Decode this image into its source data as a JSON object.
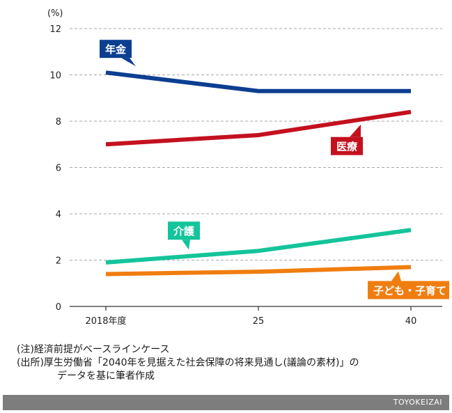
{
  "chart_data": {
    "type": "line",
    "unit_label": "(%)",
    "x": [
      "2018年度",
      "25",
      "40"
    ],
    "y_ticks": [
      0,
      2,
      4,
      6,
      8,
      10,
      12
    ],
    "ylim": [
      0,
      12
    ],
    "grid": true,
    "series": [
      {
        "name": "年金",
        "values": [
          10.1,
          9.3,
          9.3
        ],
        "color": "#0d3f91"
      },
      {
        "name": "医療",
        "values": [
          7.0,
          7.4,
          8.4
        ],
        "color": "#c4111f"
      },
      {
        "name": "介護",
        "values": [
          1.9,
          2.4,
          3.3
        ],
        "color": "#14c49a"
      },
      {
        "name": "子ども・子育て",
        "values": [
          1.4,
          1.5,
          1.7
        ],
        "color": "#f07d10"
      }
    ]
  },
  "notes": {
    "line1": "(注)経済前提がベースラインケース",
    "line2": "(出所)厚生労働省「2040年を見据えた社会保障の将来見通し(議論の素材)」の",
    "line3": "データを基に筆者作成"
  },
  "footer": {
    "brand": "TOYOKEIZAI"
  }
}
